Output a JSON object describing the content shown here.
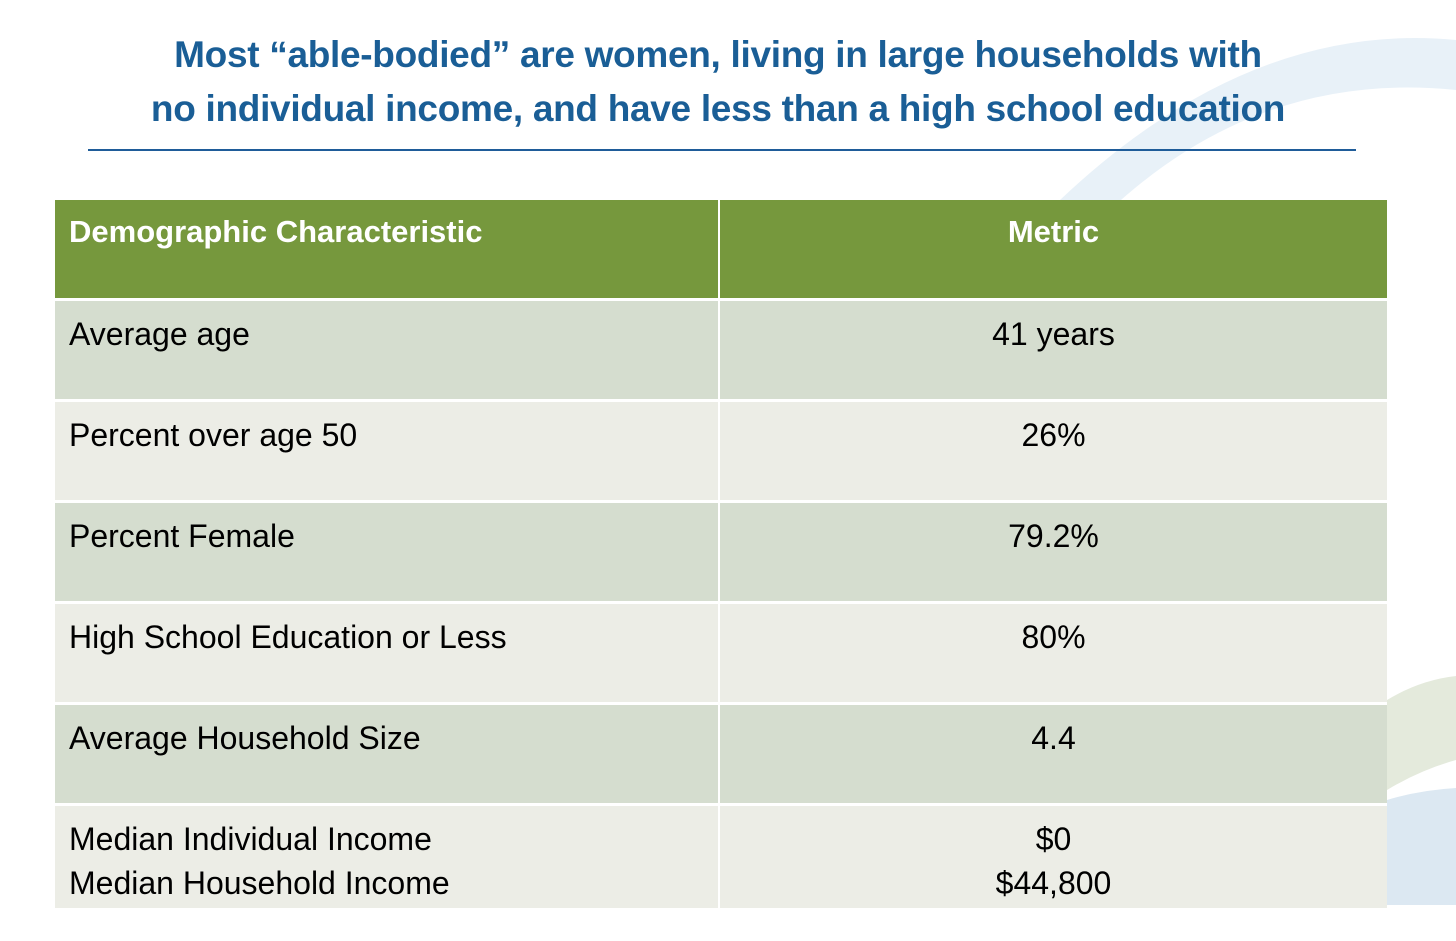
{
  "title": {
    "lines": [
      "Most “able-bodied” are women, living in large households with",
      "no individual income, and have less than a high school education"
    ]
  },
  "table": {
    "header": [
      "Demographic Characteristic",
      "Metric"
    ],
    "rows": [
      [
        [
          "Average age"
        ],
        [
          "41 years"
        ]
      ],
      [
        [
          "Percent over age 50"
        ],
        [
          "26%"
        ]
      ],
      [
        [
          "Percent Female"
        ],
        [
          "79.2%"
        ]
      ],
      [
        [
          "High School Education or Less"
        ],
        [
          "80%"
        ]
      ],
      [
        [
          "Average Household Size"
        ],
        [
          "4.4"
        ]
      ],
      [
        [
          "Median Individual Income",
          "Median Household Income"
        ],
        [
          "$0",
          "$44,800"
        ]
      ]
    ]
  }
}
